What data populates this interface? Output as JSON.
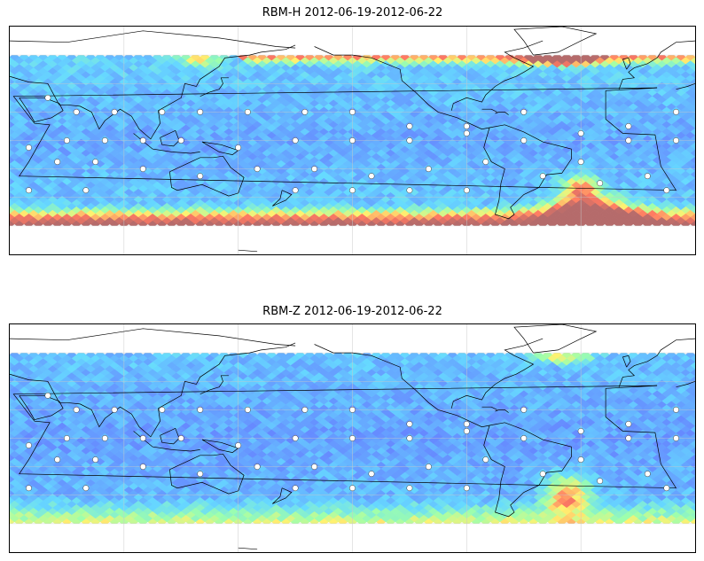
{
  "panels": [
    {
      "title": "RBM-H 2012-06-19-2012-06-22",
      "field": "rbm_h",
      "colormap": "jet (semi-transparent)",
      "data_lat_range": [
        -60,
        60
      ]
    },
    {
      "title": "RBM-Z 2012-06-19-2012-06-22",
      "field": "rbm_z",
      "colormap": "jet (semi-transparent)",
      "data_lat_range": [
        -60,
        60
      ]
    }
  ],
  "map": {
    "projection": "equirectangular",
    "lon_range": [
      30,
      390
    ],
    "lat_range": [
      -80,
      80
    ],
    "gridlines": true,
    "coastlines": true,
    "station_markers": "white dots"
  },
  "colors": {
    "low": "#6b6bff",
    "mid_low": "#58d7ff",
    "mid": "#9bffa0",
    "mid_high": "#ffee63",
    "high": "#ff6b55",
    "max": "#b06060"
  }
}
